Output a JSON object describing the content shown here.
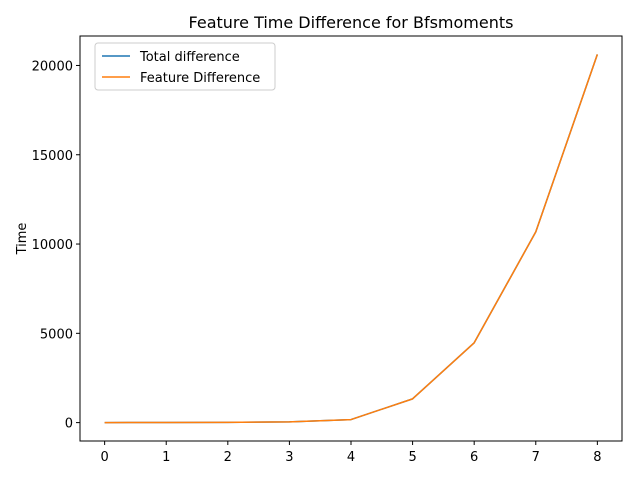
{
  "chart_data": {
    "type": "line",
    "title": "Feature Time Difference for Bfsmoments",
    "xlabel": "",
    "ylabel": "Time",
    "xlim": [
      -0.4,
      8.4
    ],
    "ylim": [
      -1030,
      21650
    ],
    "xticks": [
      0,
      1,
      2,
      3,
      4,
      5,
      6,
      7,
      8
    ],
    "yticks": [
      0,
      5000,
      10000,
      15000,
      20000
    ],
    "legend_position": "top-left",
    "grid": false,
    "x": [
      0,
      1,
      2,
      3,
      4,
      5,
      6,
      7,
      8
    ],
    "series": [
      {
        "name": "Total difference",
        "color": "#1f77b4",
        "values": [
          2,
          5,
          12,
          40,
          170,
          1330,
          4470,
          10680,
          20620
        ]
      },
      {
        "name": "Feature Difference",
        "color": "#ff7f0e",
        "values": [
          2,
          5,
          12,
          40,
          170,
          1330,
          4470,
          10680,
          20620
        ]
      }
    ]
  }
}
